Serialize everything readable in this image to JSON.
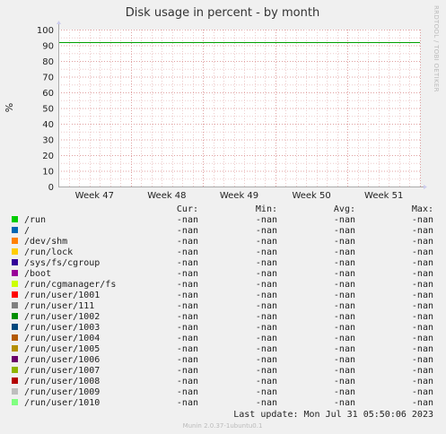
{
  "chart_data": {
    "type": "line",
    "title": "Disk usage in percent - by month",
    "ylabel": "%",
    "side_label": "RRDTOOL / TOBI OETIKER",
    "ylim": [
      0,
      100
    ],
    "y_ticks": [
      "0",
      "10",
      "20",
      "30",
      "40",
      "50",
      "60",
      "70",
      "80",
      "90",
      "100"
    ],
    "x_categories": [
      "Week 47",
      "Week 48",
      "Week 49",
      "Week 50",
      "Week 51"
    ],
    "warning_line": 92,
    "grid": true,
    "legend_headers": [
      "Cur:",
      "Min:",
      "Avg:",
      "Max:"
    ],
    "series": [
      {
        "name": "/run",
        "color": "#00cc00",
        "values": [
          "-nan",
          "-nan",
          "-nan",
          "-nan"
        ]
      },
      {
        "name": "/",
        "color": "#0066b3",
        "values": [
          "-nan",
          "-nan",
          "-nan",
          "-nan"
        ]
      },
      {
        "name": "/dev/shm",
        "color": "#ff8000",
        "values": [
          "-nan",
          "-nan",
          "-nan",
          "-nan"
        ]
      },
      {
        "name": "/run/lock",
        "color": "#ffcc00",
        "values": [
          "-nan",
          "-nan",
          "-nan",
          "-nan"
        ]
      },
      {
        "name": "/sys/fs/cgroup",
        "color": "#330099",
        "values": [
          "-nan",
          "-nan",
          "-nan",
          "-nan"
        ]
      },
      {
        "name": "/boot",
        "color": "#990099",
        "values": [
          "-nan",
          "-nan",
          "-nan",
          "-nan"
        ]
      },
      {
        "name": "/run/cgmanager/fs",
        "color": "#ccff00",
        "values": [
          "-nan",
          "-nan",
          "-nan",
          "-nan"
        ]
      },
      {
        "name": "/run/user/1001",
        "color": "#ff0000",
        "values": [
          "-nan",
          "-nan",
          "-nan",
          "-nan"
        ]
      },
      {
        "name": "/run/user/111",
        "color": "#808080",
        "values": [
          "-nan",
          "-nan",
          "-nan",
          "-nan"
        ]
      },
      {
        "name": "/run/user/1002",
        "color": "#008f00",
        "values": [
          "-nan",
          "-nan",
          "-nan",
          "-nan"
        ]
      },
      {
        "name": "/run/user/1003",
        "color": "#00487d",
        "values": [
          "-nan",
          "-nan",
          "-nan",
          "-nan"
        ]
      },
      {
        "name": "/run/user/1004",
        "color": "#b35a00",
        "values": [
          "-nan",
          "-nan",
          "-nan",
          "-nan"
        ]
      },
      {
        "name": "/run/user/1005",
        "color": "#b38f00",
        "values": [
          "-nan",
          "-nan",
          "-nan",
          "-nan"
        ]
      },
      {
        "name": "/run/user/1006",
        "color": "#6b006b",
        "values": [
          "-nan",
          "-nan",
          "-nan",
          "-nan"
        ]
      },
      {
        "name": "/run/user/1007",
        "color": "#8fb300",
        "values": [
          "-nan",
          "-nan",
          "-nan",
          "-nan"
        ]
      },
      {
        "name": "/run/user/1008",
        "color": "#b30000",
        "values": [
          "-nan",
          "-nan",
          "-nan",
          "-nan"
        ]
      },
      {
        "name": "/run/user/1009",
        "color": "#bebebe",
        "values": [
          "-nan",
          "-nan",
          "-nan",
          "-nan"
        ]
      },
      {
        "name": "/run/user/1010",
        "color": "#80ff80",
        "values": [
          "-nan",
          "-nan",
          "-nan",
          "-nan"
        ]
      }
    ],
    "last_update": "Last update: Mon Jul 31 05:50:06 2023",
    "footer": "Munin 2.0.37-1ubuntu0.1"
  }
}
